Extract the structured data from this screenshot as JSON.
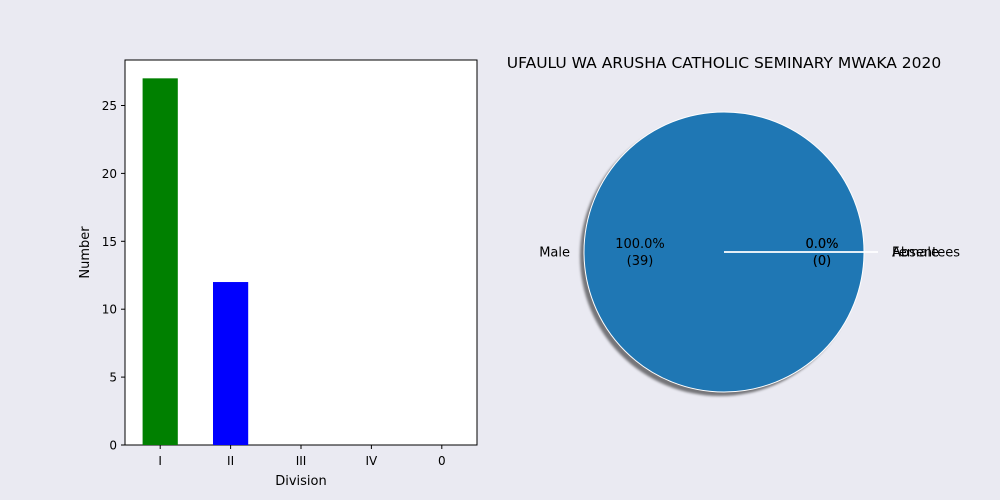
{
  "chart_data": [
    {
      "type": "bar",
      "categories": [
        "I",
        "II",
        "III",
        "IV",
        "0"
      ],
      "values": [
        27,
        12,
        0,
        0,
        0
      ],
      "colors": [
        "#008000",
        "#0000ff",
        "#ff0000",
        "#ffff00",
        "#000000"
      ],
      "xlabel": "Division",
      "ylabel": "Number",
      "ylim": [
        0,
        28.35
      ],
      "yticks": [
        0,
        5,
        10,
        15,
        20,
        25
      ],
      "grid": false,
      "background": "#ffffff"
    },
    {
      "type": "pie",
      "title": "UFAULU WA ARUSHA CATHOLIC SEMINARY MWAKA 2020",
      "shadow": true,
      "slices": [
        {
          "label": "Male",
          "value": 39,
          "pct": "100.0%",
          "count": "(39)",
          "color": "#1f77b4",
          "explode": 0
        },
        {
          "label": "Female",
          "value": 0,
          "pct": "0.0%",
          "count": "(0)",
          "color": "#ff7f0e",
          "explode": 0.1
        },
        {
          "label": "Absentees",
          "value": 0,
          "pct": "0.0%",
          "count": "(0)",
          "color": "#2ca02c",
          "explode": 0.1
        }
      ]
    }
  ]
}
